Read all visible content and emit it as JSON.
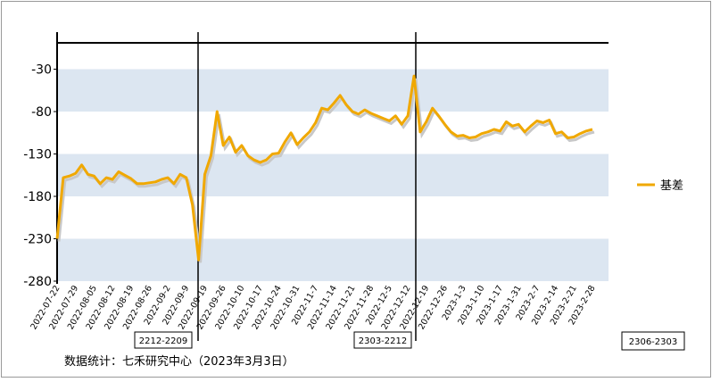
{
  "chart_data": {
    "type": "line",
    "categories": [
      "2022-07-22",
      null,
      null,
      "2022-07-29",
      null,
      null,
      "2022-08-05",
      null,
      null,
      "2022-08-12",
      null,
      null,
      "2022-08-19",
      null,
      null,
      "2022-08-26",
      null,
      null,
      "2022-09-2",
      null,
      null,
      "2022-09-9",
      null,
      null,
      "2022-09-19",
      null,
      null,
      "2022-09-26",
      null,
      null,
      "2022-10-10",
      null,
      null,
      "2022-10-17",
      null,
      null,
      "2022-10-24",
      null,
      null,
      "2022-10-31",
      null,
      null,
      "2022-11-7",
      null,
      null,
      "2022-11-14",
      null,
      null,
      "2022-11-21",
      null,
      null,
      "2022-11-28",
      null,
      null,
      "2022-12-5",
      null,
      null,
      "2022-12-12",
      null,
      null,
      "2022-12-19",
      null,
      null,
      "2022-12-26",
      null,
      null,
      "2023-1-3",
      null,
      null,
      "2023-1-10",
      null,
      null,
      "2023-1-17",
      null,
      null,
      "2023-1-31",
      null,
      null,
      "2023-2-7",
      null,
      null,
      "2023-2-14",
      null,
      null,
      "2023-2-21",
      null,
      null,
      "2023-2-28"
    ],
    "series": [
      {
        "name": "基差",
        "color": "#f0a800",
        "values": [
          -230,
          -158,
          -156,
          -153,
          -143,
          -154,
          -156,
          -165,
          -158,
          -160,
          -151,
          -155,
          -159,
          -165,
          -165,
          -164,
          -163,
          -160,
          -158,
          -165,
          -154,
          -158,
          -190,
          -255,
          -154,
          -132,
          -80,
          -120,
          -110,
          -128,
          -120,
          -132,
          -137,
          -140,
          -137,
          -130,
          -129,
          -116,
          -105,
          -119,
          -111,
          -104,
          -93,
          -76,
          -78,
          -70,
          -61,
          -72,
          -80,
          -83,
          -78,
          -82,
          -85,
          -88,
          -91,
          -85,
          -95,
          -85,
          -38,
          -104,
          -92,
          -76,
          -85,
          -95,
          -104,
          -109,
          -108,
          -111,
          -110,
          -106,
          -104,
          -101,
          -103,
          -92,
          -97,
          -95,
          -104,
          -97,
          -91,
          -93,
          -90,
          -106,
          -104,
          -111,
          -110,
          -106,
          -103,
          -101
        ]
      }
    ],
    "ylim": [
      -280,
      0
    ],
    "yticks": [
      -30,
      -80,
      -130,
      -180,
      -230,
      -280
    ],
    "annotations": [
      "2212-2209",
      "2303-2212",
      "2306-2303"
    ],
    "source": "数据统计：七禾研究中心（2023年3月3日）"
  }
}
